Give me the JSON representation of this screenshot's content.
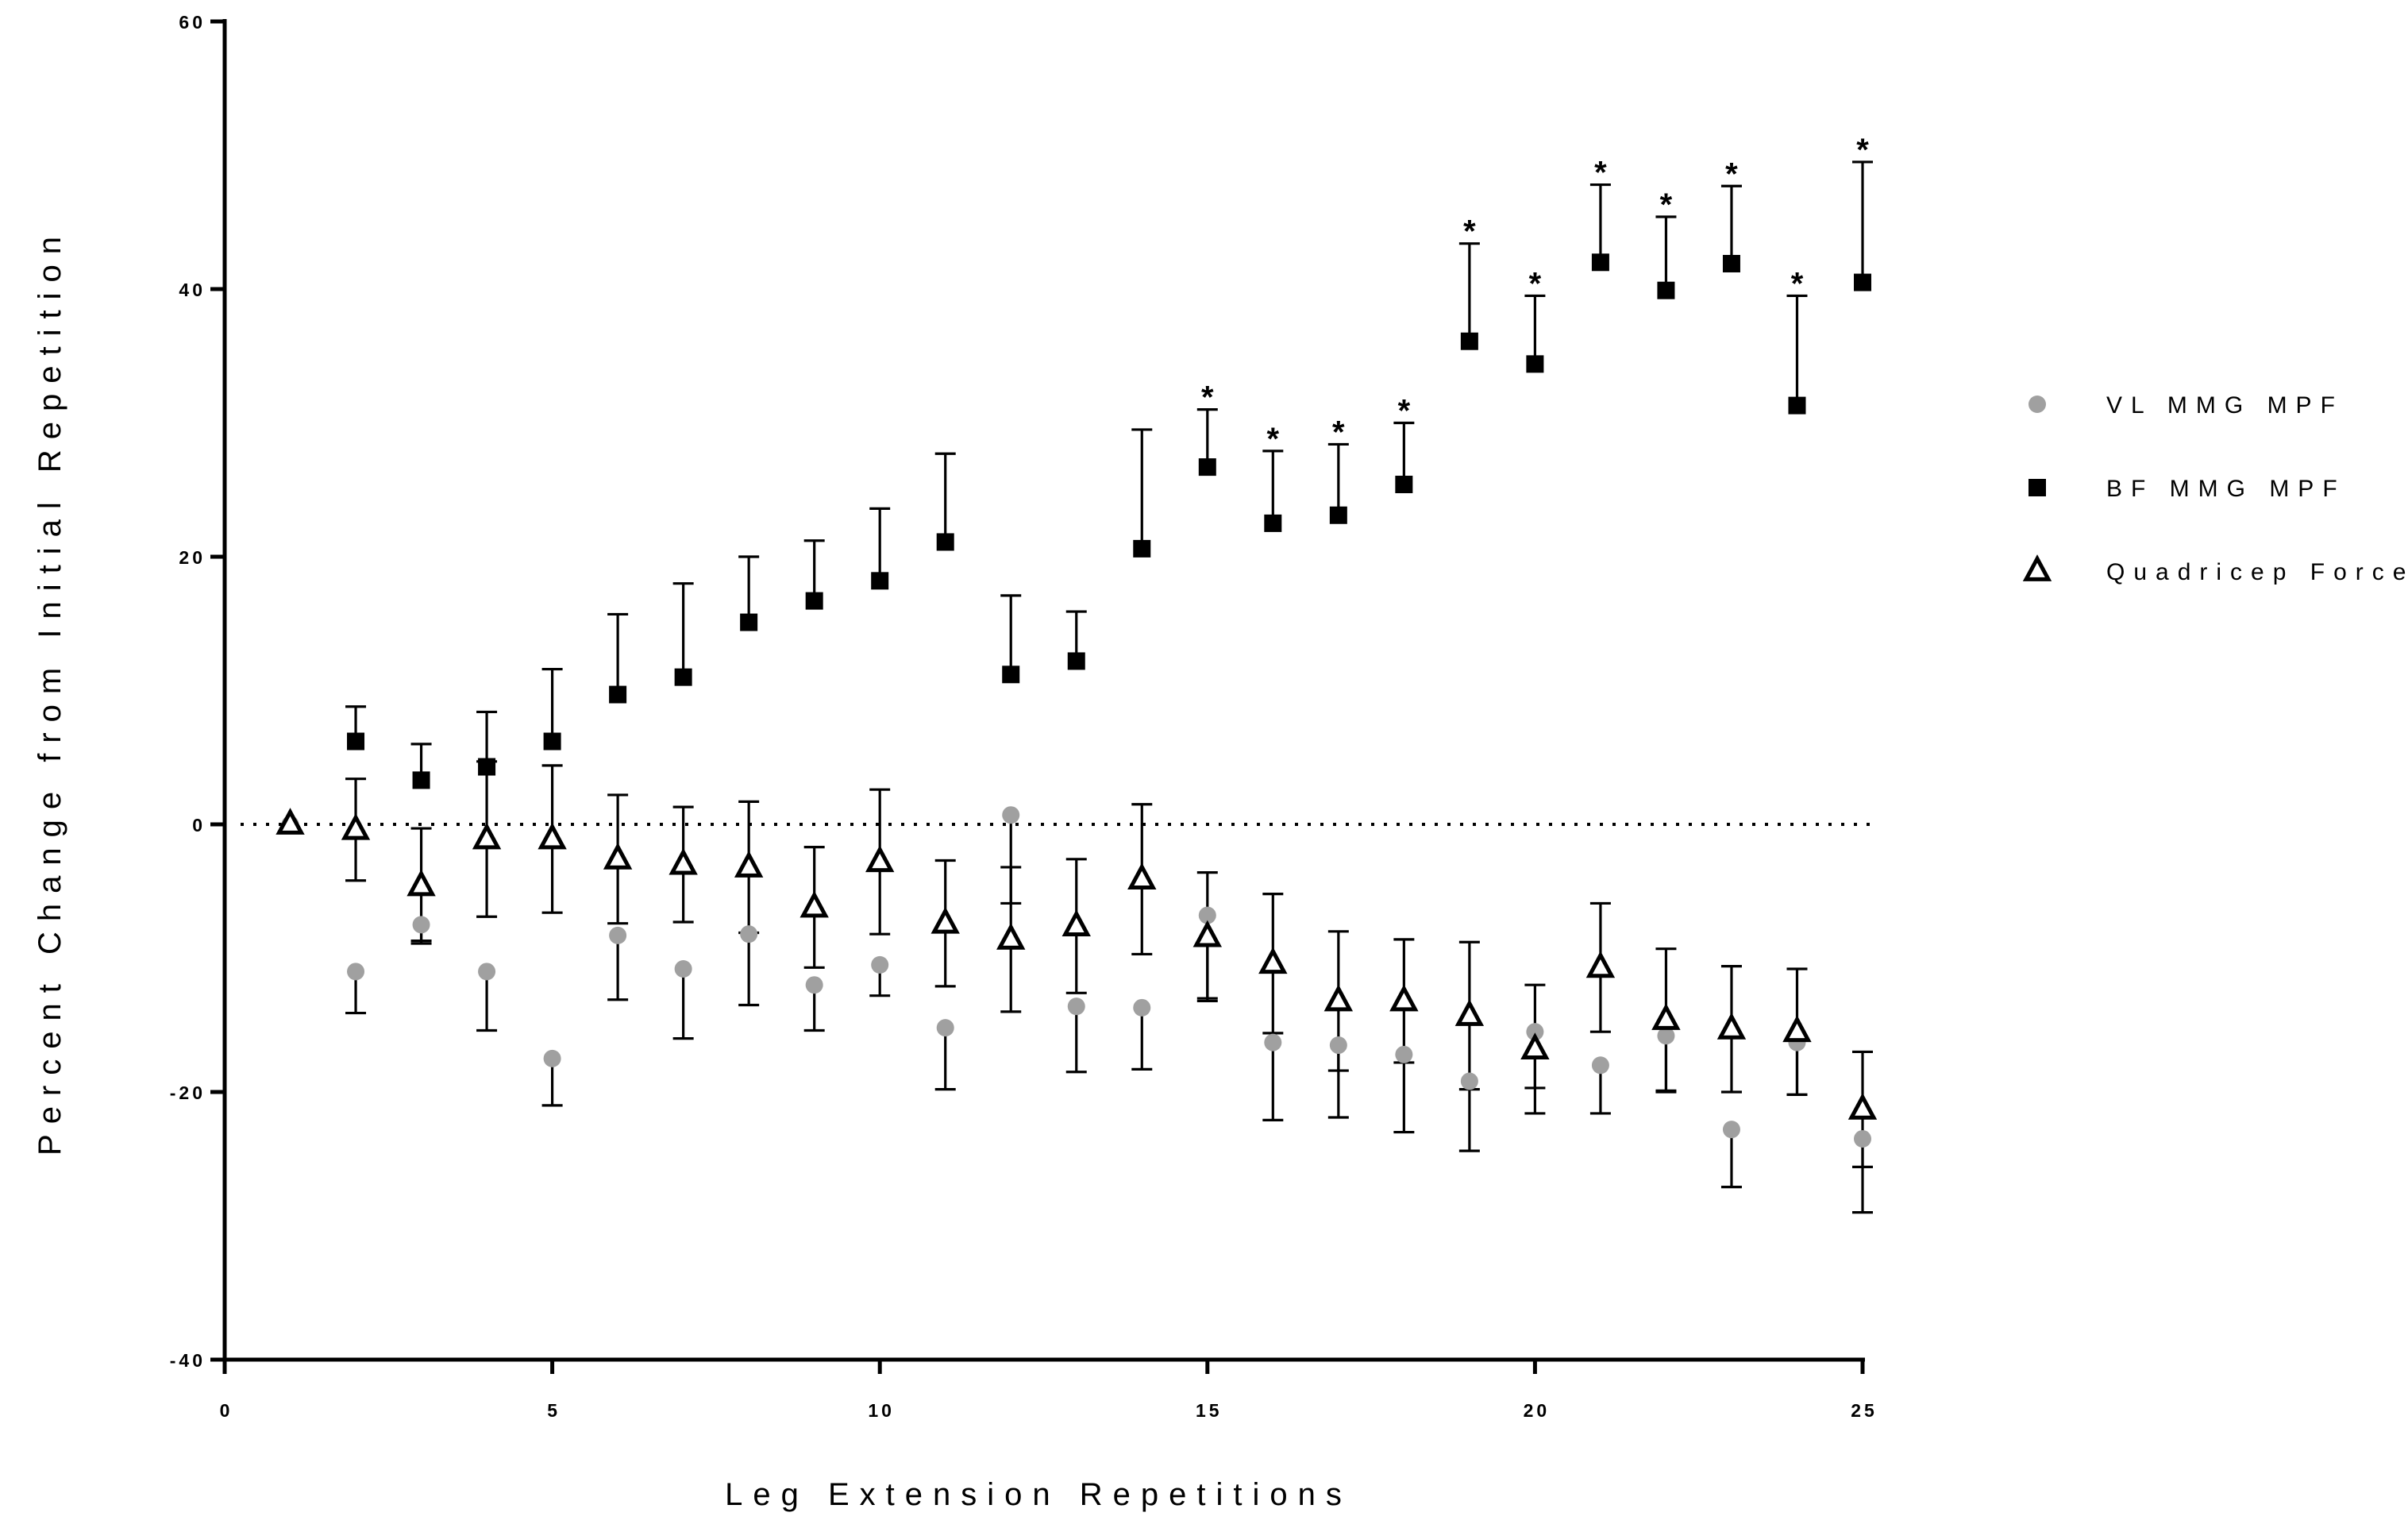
{
  "chart_data": {
    "type": "scatter",
    "title": "",
    "xlabel": "Leg Extension Repetitions",
    "ylabel": "Percent Change from Initial Repetition",
    "xlim": [
      0,
      25
    ],
    "ylim": [
      -40,
      60
    ],
    "xticks": [
      0,
      5,
      10,
      15,
      20,
      25
    ],
    "yticks": [
      -40,
      -20,
      0,
      20,
      40,
      60
    ],
    "x_tick_labels": [
      "0",
      "5",
      "10",
      "15",
      "20",
      "25"
    ],
    "y_tick_labels": [
      "-40",
      "-20",
      "0",
      "20",
      "40",
      "60"
    ],
    "grid": false,
    "reference_line": {
      "y": 0,
      "style": "dotted"
    },
    "legend": {
      "position": "right"
    },
    "series": [
      {
        "name": "VL MMG MPF",
        "marker": "circle",
        "color": "#a0a0a0",
        "error_direction": "down",
        "x": [
          1,
          2,
          3,
          4,
          5,
          6,
          7,
          8,
          9,
          10,
          11,
          12,
          13,
          14,
          15,
          16,
          17,
          18,
          19,
          20,
          21,
          22,
          23,
          24,
          25
        ],
        "y": [
          0,
          -11,
          -7.5,
          -11,
          -17.5,
          -8.3,
          -10.8,
          -8.2,
          -12,
          -10.5,
          -15.2,
          0.7,
          -13.6,
          -13.7,
          -6.8,
          -16.3,
          -16.5,
          -17.2,
          -19.2,
          -15.5,
          -18,
          -15.8,
          -22.8,
          -16.3,
          -23.5
        ],
        "err": [
          0,
          3.1,
          1.2,
          4.4,
          3.5,
          4.8,
          5.2,
          5.3,
          3.4,
          2.3,
          4.6,
          6.6,
          4.9,
          4.6,
          6.2,
          5.8,
          5.4,
          5.8,
          5.2,
          4.2,
          3.6,
          4.2,
          4.3,
          3.9,
          5.5
        ]
      },
      {
        "name": "BF MMG MPF",
        "marker": "square",
        "color": "#000000",
        "error_direction": "up",
        "x": [
          2,
          3,
          4,
          5,
          6,
          7,
          8,
          9,
          10,
          11,
          12,
          13,
          14,
          15,
          16,
          17,
          18,
          19,
          20,
          21,
          22,
          23,
          24,
          25
        ],
        "y": [
          6.2,
          3.3,
          4.3,
          6.2,
          9.7,
          11,
          15.1,
          16.7,
          18.2,
          21.1,
          11.2,
          12.2,
          20.6,
          26.7,
          22.5,
          23.1,
          25.4,
          36.1,
          34.4,
          42,
          39.9,
          41.9,
          31.3,
          40.5
        ],
        "err": [
          2.6,
          2.7,
          4.1,
          5.4,
          6.0,
          7.0,
          4.9,
          4.5,
          5.4,
          6.6,
          5.9,
          3.7,
          8.9,
          4.3,
          5.4,
          5.3,
          4.6,
          7.3,
          5.1,
          5.8,
          5.5,
          5.8,
          8.2,
          9.0
        ],
        "significant": [
          false,
          false,
          false,
          false,
          false,
          false,
          false,
          false,
          false,
          false,
          false,
          false,
          false,
          true,
          true,
          true,
          true,
          true,
          true,
          true,
          true,
          true,
          true,
          true
        ]
      },
      {
        "name": "Quadricep Force",
        "marker": "triangle-open",
        "color": "#000000",
        "error_direction": "both",
        "x": [
          1,
          2,
          3,
          4,
          5,
          6,
          7,
          8,
          9,
          10,
          11,
          12,
          13,
          14,
          15,
          16,
          17,
          18,
          19,
          20,
          21,
          22,
          23,
          24,
          25
        ],
        "y": [
          0,
          -0.4,
          -4.6,
          -1.1,
          -1.1,
          -2.6,
          -3,
          -3.2,
          -6.2,
          -2.8,
          -7.4,
          -8.6,
          -7.6,
          -4.1,
          -8.4,
          -10.4,
          -13.2,
          -13.2,
          -14.3,
          -16.8,
          -10.7,
          -14.6,
          -15.3,
          -15.5,
          -21.3
        ],
        "err": [
          0,
          3.8,
          4.3,
          5.8,
          5.5,
          4.8,
          4.3,
          4.9,
          4.5,
          5.4,
          4.7,
          5.4,
          5.0,
          5.6,
          4.8,
          5.2,
          5.2,
          4.6,
          5.5,
          4.8,
          4.8,
          5.3,
          4.7,
          4.7,
          4.3
        ]
      }
    ],
    "annotations": [
      {
        "text": "*",
        "meaning": "significant",
        "applies_to": "BF MMG MPF"
      }
    ]
  }
}
